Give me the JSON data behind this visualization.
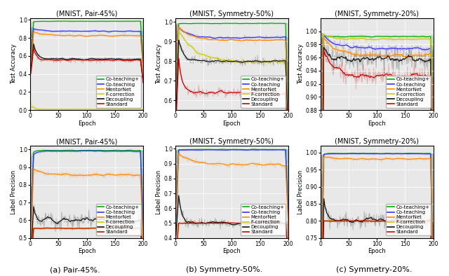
{
  "titles_top": [
    "(MNIST, Pair-45%)",
    "(MNIST, Symmetry-50%)",
    "(MNIST, Symmetry-20%)"
  ],
  "titles_bottom": [
    "(MNIST, Pair-45%)",
    "(MNIST, Symmetry-50%)",
    "(MNIST, Symmetry-20%)"
  ],
  "xlabel": "Epoch",
  "ylabel_top": "Test Accuracy",
  "ylabel_bottom": "Label Precision",
  "captions": [
    "(a) Pair-45%.",
    "(b) Symmetry-50%.",
    "(c) Symmetry-20%."
  ],
  "colors": {
    "coteaching_plus": "#00aa00",
    "coteaching": "#3333ff",
    "mentornet": "#ff8800",
    "fcorrection": "#cccc00",
    "decoupling": "#111111",
    "standard": "#cc0000"
  },
  "legend_labels": [
    "Co-teaching+",
    "Co-teaching",
    "MentorNet",
    "F-correction",
    "Decoupling",
    "Standard"
  ],
  "n_epochs": 200,
  "acc_ylims": {
    "pair45": [
      0.0,
      1.02
    ],
    "sym50": [
      0.55,
      1.02
    ],
    "sym20": [
      0.88,
      1.02
    ]
  },
  "acc_yticks": {
    "pair45": [
      0.0,
      0.2,
      0.4,
      0.6,
      0.8,
      1.0
    ],
    "sym50": [
      0.6,
      0.7,
      0.8,
      0.9,
      1.0
    ],
    "sym20": [
      0.88,
      0.9,
      0.92,
      0.94,
      0.96,
      0.98,
      1.0
    ]
  },
  "prec_ylims": {
    "pair45": [
      0.5,
      1.02
    ],
    "sym50": [
      0.4,
      1.02
    ],
    "sym20": [
      0.75,
      1.02
    ]
  },
  "prec_yticks": {
    "pair45": [
      0.5,
      0.6,
      0.7,
      0.8,
      0.9,
      1.0
    ],
    "sym50": [
      0.4,
      0.5,
      0.6,
      0.7,
      0.8,
      0.9,
      1.0
    ],
    "sym20": [
      0.75,
      0.8,
      0.85,
      0.9,
      0.95,
      1.0
    ]
  },
  "bg_color": "#e8e8e8",
  "title_fontsize": 7,
  "axis_fontsize": 6,
  "tick_fontsize": 5.5,
  "legend_fontsize": 5,
  "caption_fontsize": 8,
  "legend_locs": {
    "top_pair45": "lower right",
    "top_sym50": "lower right",
    "top_sym20": "lower right",
    "bot_pair45": "lower right",
    "bot_sym50": "lower right",
    "bot_sym20": "lower right"
  }
}
